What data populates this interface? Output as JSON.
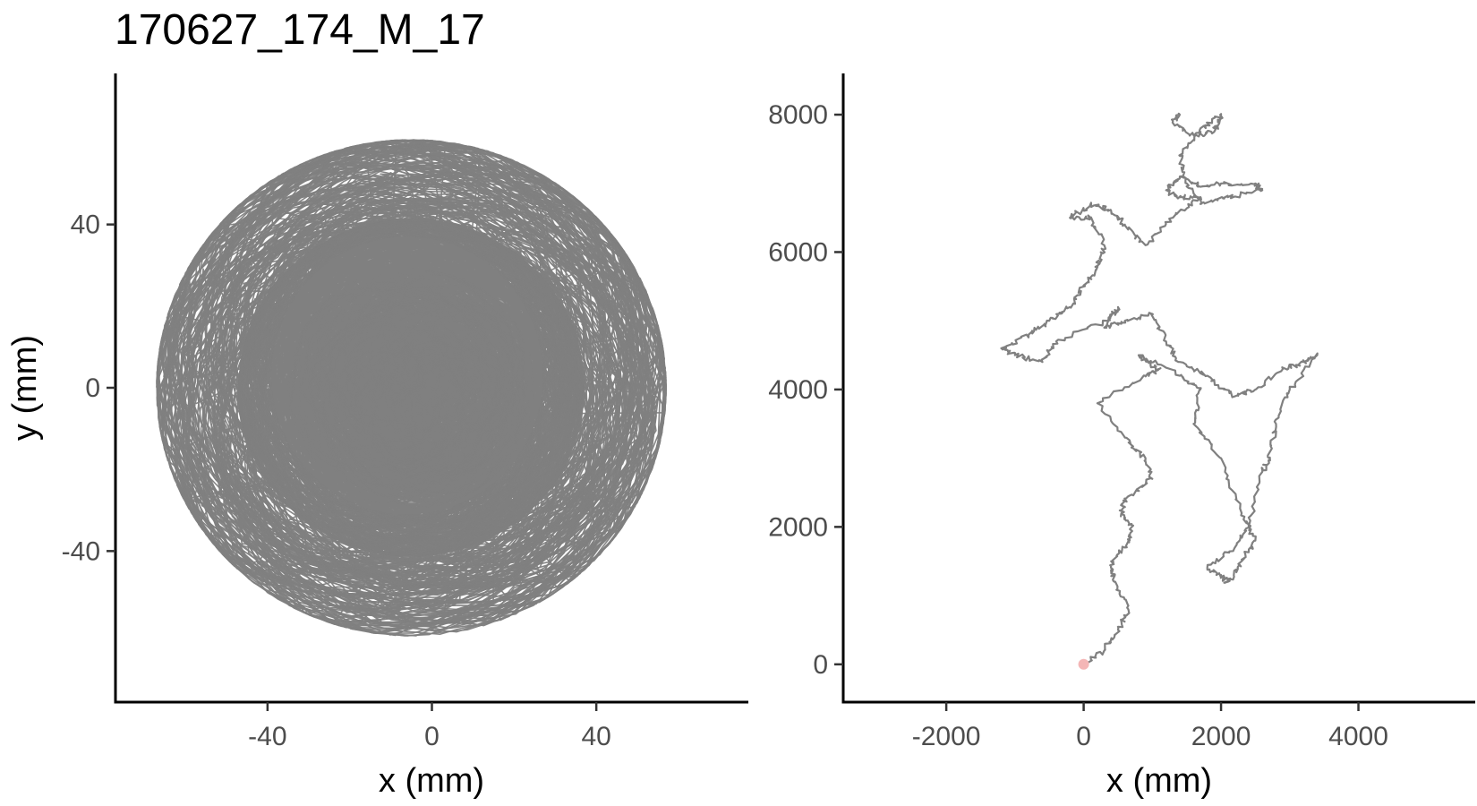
{
  "title": "170627_174_M_17",
  "colors": {
    "path": "#808080",
    "start_point": "#f4b6b6",
    "axis": "#000000",
    "tick_label": "#4d4d4d"
  },
  "chart_data": [
    {
      "type": "line",
      "panel": "arena trajectory (left)",
      "xlabel": "x (mm)",
      "ylabel": "y (mm)",
      "xlim": [
        -77,
        77
      ],
      "ylim": [
        -77,
        77
      ],
      "x_ticks": [
        -40,
        0,
        40
      ],
      "y_ticks": [
        -40,
        0,
        40
      ],
      "x_tick_labels": [
        "-40",
        "0",
        "40"
      ],
      "y_tick_labels": [
        "-40",
        "0",
        "40"
      ],
      "grid": false,
      "series": [
        {
          "style": "gray dense path confined to circular arena of radius ~62 mm centred near (-5, 0)",
          "center": [
            -5,
            0
          ],
          "outer_radius": 62,
          "core_radius": 38
        }
      ]
    },
    {
      "type": "line",
      "panel": "cumulative (unwrapped) trajectory (right)",
      "xlabel": "x (mm)",
      "ylabel": "",
      "xlim": [
        -3500,
        5700
      ],
      "ylim": [
        -550,
        8600
      ],
      "x_ticks": [
        -2000,
        0,
        2000,
        4000
      ],
      "y_ticks": [
        0,
        2000,
        4000,
        6000,
        8000
      ],
      "x_tick_labels": [
        "-2000",
        "0",
        "2000",
        "4000"
      ],
      "y_tick_labels": [
        "0",
        "2000",
        "4000",
        "6000",
        "8000"
      ],
      "grid": false,
      "start_point": [
        0,
        0
      ],
      "series": [
        {
          "x": [
            0,
            300,
            500,
            650,
            450,
            400,
            600,
            700,
            550,
            600,
            1000,
            900,
            600,
            200,
            900,
            1100,
            800,
            1400,
            1700,
            1600,
            2000,
            2300,
            2500,
            2300,
            2100,
            2000,
            1800,
            2200,
            2400,
            2600,
            2700,
            2800,
            3000,
            3400,
            3200,
            2900,
            2500,
            2200,
            1800,
            1400,
            1200,
            1000,
            600,
            300,
            500,
            350,
            -400,
            -600,
            -1000,
            -1200,
            -800,
            -500,
            -200,
            0,
            200,
            300,
            100,
            -200,
            100,
            400,
            600,
            900,
            1300,
            1700,
            1400,
            1200,
            1400,
            1700,
            2000,
            2500,
            2600,
            2100,
            1700,
            1500,
            1400,
            1700,
            2000,
            1900,
            1600,
            1300,
            1400
          ],
          "y": [
            0,
            200,
            500,
            800,
            1200,
            1500,
            1700,
            2000,
            2200,
            2400,
            2700,
            3000,
            3300,
            3800,
            4200,
            4300,
            4500,
            4200,
            4000,
            3500,
            3000,
            2200,
            1800,
            1500,
            1200,
            1300,
            1400,
            1700,
            2000,
            2800,
            3000,
            3500,
            4000,
            4500,
            4400,
            4300,
            4000,
            3900,
            4200,
            4400,
            4700,
            5100,
            5000,
            4900,
            5200,
            5000,
            4700,
            4400,
            4500,
            4600,
            4800,
            5000,
            5200,
            5500,
            5800,
            6100,
            6500,
            6500,
            6700,
            6600,
            6400,
            6100,
            6500,
            6800,
            6800,
            6900,
            7100,
            6950,
            7000,
            7000,
            6900,
            6800,
            6700,
            7000,
            7400,
            7800,
            8000,
            7750,
            7700,
            7900,
            8000
          ]
        }
      ]
    }
  ]
}
